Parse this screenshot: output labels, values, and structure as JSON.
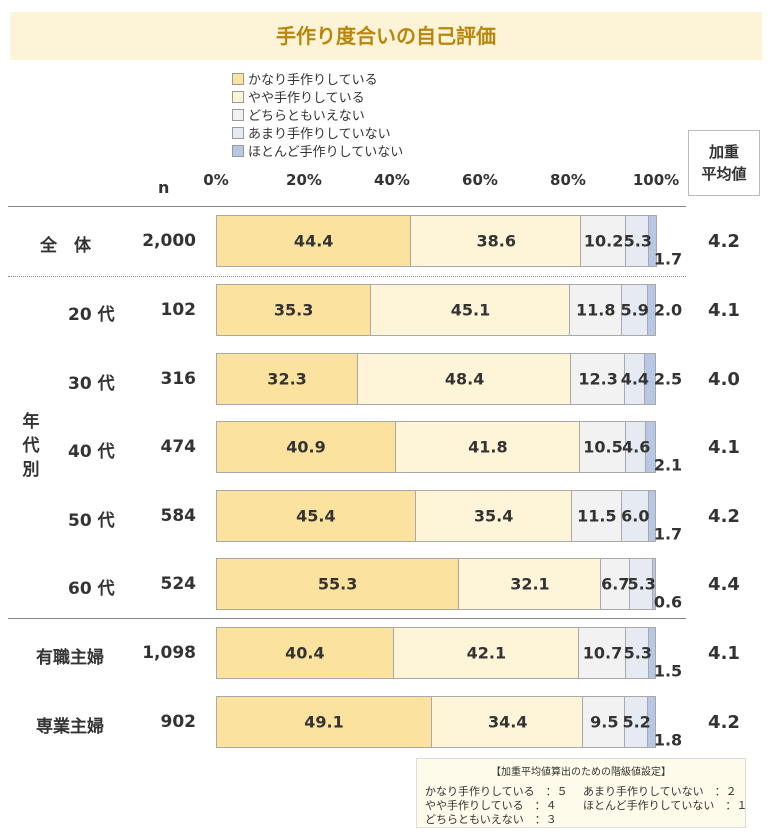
{
  "title": "手作り度合いの自己評価",
  "legend": [
    {
      "label": "かなり手作りしている",
      "color": "#fbe29e"
    },
    {
      "label": "やや手作りしている",
      "color": "#fef5d8"
    },
    {
      "label": "どちらともいえない",
      "color": "#f2f2f2"
    },
    {
      "label": "あまり手作りしていない",
      "color": "#e6ebf3"
    },
    {
      "label": "ほとんど手作りしていない",
      "color": "#b8c8e4"
    }
  ],
  "n_header": "n",
  "weighted_header_line1": "加重",
  "weighted_header_line2": "平均値",
  "group_label": "年代別",
  "chart_data": {
    "type": "bar",
    "orientation": "horizontal",
    "stacked": true,
    "xlim": [
      0,
      100
    ],
    "xticks": [
      "0%",
      "20%",
      "40%",
      "60%",
      "80%",
      "100%"
    ],
    "series_names": [
      "かなり手作りしている",
      "やや手作りしている",
      "どちらともいえない",
      "あまり手作りしていない",
      "ほとんど手作りしていない"
    ],
    "rows": [
      {
        "label": "全　体",
        "n": "2,000",
        "values": [
          44.4,
          38.6,
          10.2,
          5.3,
          1.7
        ],
        "avg": "4.2"
      },
      {
        "label": "20 代",
        "n": "102",
        "values": [
          35.3,
          45.1,
          11.8,
          5.9,
          2.0
        ],
        "avg": "4.1"
      },
      {
        "label": "30 代",
        "n": "316",
        "values": [
          32.3,
          48.4,
          12.3,
          4.4,
          2.5
        ],
        "avg": "4.0"
      },
      {
        "label": "40 代",
        "n": "474",
        "values": [
          40.9,
          41.8,
          10.5,
          4.6,
          2.1
        ],
        "avg": "4.1"
      },
      {
        "label": "50 代",
        "n": "584",
        "values": [
          45.4,
          35.4,
          11.5,
          6.0,
          1.7
        ],
        "avg": "4.2"
      },
      {
        "label": "60 代",
        "n": "524",
        "values": [
          55.3,
          32.1,
          6.7,
          5.3,
          0.6
        ],
        "avg": "4.4"
      },
      {
        "label": "有職主婦",
        "n": "1,098",
        "values": [
          40.4,
          42.1,
          10.7,
          5.3,
          1.5
        ],
        "avg": "4.1"
      },
      {
        "label": "専業主婦",
        "n": "902",
        "values": [
          49.1,
          34.4,
          9.5,
          5.2,
          1.8
        ],
        "avg": "4.2"
      }
    ]
  },
  "note": {
    "title": "【加重平均値算出のための階級値設定】",
    "items": [
      "かなり手作りしている　：５",
      "あまり手作りしていない　：２",
      "やや手作りしている　：４",
      "ほとんど手作りしていない　：１",
      "どちらともいえない　：３"
    ]
  }
}
